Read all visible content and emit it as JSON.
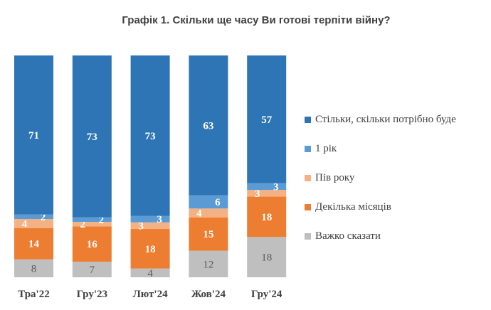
{
  "chart_data": {
    "type": "bar",
    "stacked": true,
    "title": "Графік 1. Скільки ще часу Ви готові терпіти війну?",
    "categories": [
      "Тра'22",
      "Гру'23",
      "Лют'24",
      "Жов'24",
      "Гру'24"
    ],
    "series": [
      {
        "name": "Важко сказати",
        "color": "#BFBFBF",
        "label_color": "#595959",
        "values": [
          8,
          7,
          4,
          12,
          18
        ]
      },
      {
        "name": "Декілька місяців",
        "color": "#ED7D31",
        "label_color": "#ffffff",
        "values": [
          14,
          16,
          18,
          15,
          18
        ]
      },
      {
        "name": "Пів року",
        "color": "#F4B183",
        "label_color": "#ffffff",
        "values": [
          4,
          2,
          3,
          4,
          3
        ]
      },
      {
        "name": "1 рік",
        "color": "#5B9BD5",
        "label_color": "#ffffff",
        "values": [
          2,
          2,
          3,
          6,
          3
        ]
      },
      {
        "name": "Стільки, скільки потрібно буде",
        "color": "#2E75B6",
        "label_color": "#ffffff",
        "values": [
          71,
          73,
          73,
          63,
          57
        ]
      }
    ],
    "legend_position": "right",
    "ylim": [
      0,
      100
    ]
  }
}
